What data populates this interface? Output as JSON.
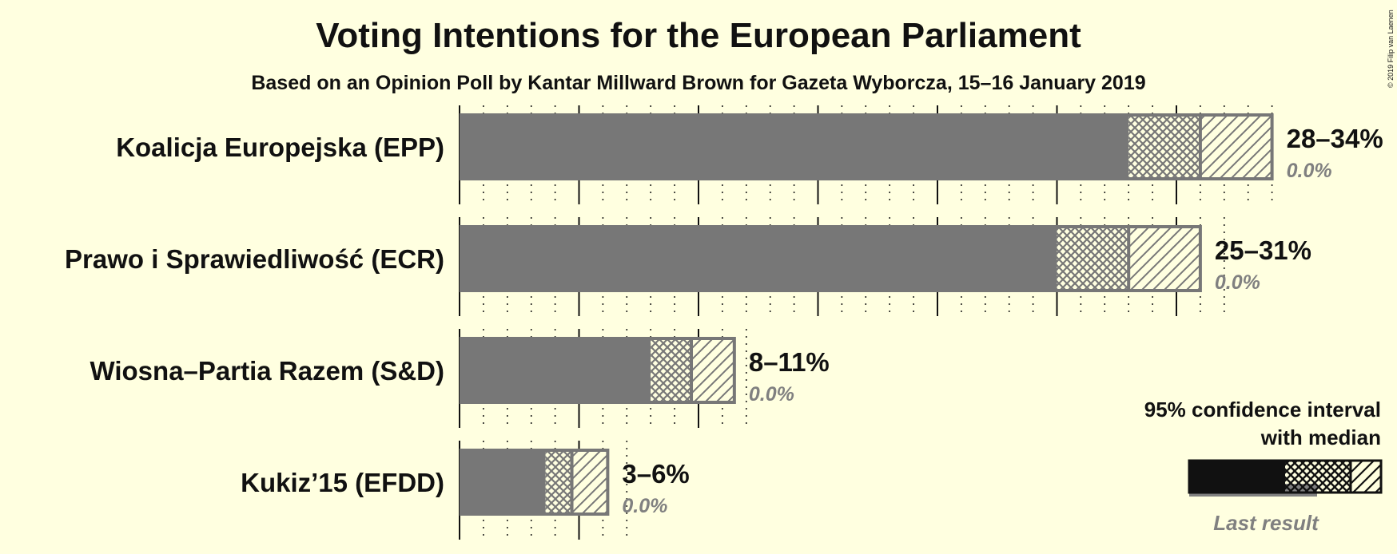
{
  "title": "Voting Intentions for the European Parliament",
  "subtitle": "Based on an Opinion Poll by Kantar Millward Brown for Gazeta Wyborcza, 15–16 January 2019",
  "copyright": "© 2019 Filip van Laenen",
  "legend": {
    "line1": "95% confidence interval",
    "line2": "with median",
    "last_result": "Last result"
  },
  "colors": {
    "background": "#ffffe0",
    "bar": "#777777",
    "outline": "#777777",
    "text": "#111111",
    "last_result_text": "#808080",
    "legend_bar": "#111111"
  },
  "chart_data": {
    "type": "bar",
    "orientation": "horizontal",
    "axis": {
      "min": 0,
      "max": 34,
      "major_tick_every": 5,
      "minor_tick_every": 1
    },
    "series": [
      {
        "party": "Koalicja Europejska (EPP)",
        "low": 28,
        "median": 31,
        "high": 34,
        "range_label": "28–34%",
        "last_result": "0.0%"
      },
      {
        "party": "Prawo i Sprawiedliwość (ECR)",
        "low": 25,
        "median": 28,
        "high": 31,
        "range_label": "25–31%",
        "last_result": "0.0%"
      },
      {
        "party": "Wiosna–Partia Razem (S&D)",
        "low": 8,
        "median": 9.7,
        "high": 11.5,
        "range_label": "8–11%",
        "last_result": "0.0%"
      },
      {
        "party": "Kukiz’15 (EFDD)",
        "low": 3.6,
        "median": 4.7,
        "high": 6.2,
        "range_label": "3–6%",
        "last_result": "0.0%"
      }
    ]
  }
}
